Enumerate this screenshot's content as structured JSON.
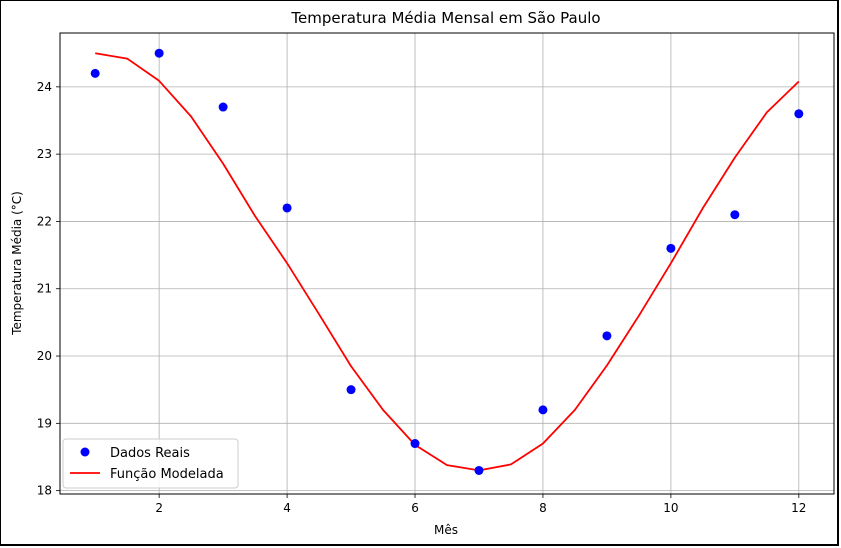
{
  "chart_data": {
    "type": "scatter",
    "title": "Temperatura Média Mensal em São Paulo",
    "xlabel": "Mês",
    "ylabel": "Temperatura Média (°C)",
    "xlim": [
      0.45,
      12.55
    ],
    "ylim": [
      17.95,
      24.8
    ],
    "xticks": [
      2,
      4,
      6,
      8,
      10,
      12
    ],
    "yticks": [
      18,
      19,
      20,
      21,
      22,
      23,
      24
    ],
    "grid": true,
    "legend_position": "lower-left",
    "series": [
      {
        "name": "Dados Reais",
        "kind": "scatter",
        "color": "#0000ff",
        "x": [
          1,
          2,
          3,
          4,
          5,
          6,
          7,
          8,
          9,
          10,
          11,
          12
        ],
        "y": [
          24.2,
          24.5,
          23.7,
          22.2,
          19.5,
          18.7,
          18.3,
          19.2,
          20.3,
          21.6,
          22.1,
          23.6
        ]
      },
      {
        "name": "Função Modelada",
        "kind": "line",
        "color": "#ff0000",
        "x": [
          1,
          1.5,
          2,
          2.5,
          3,
          3.5,
          4,
          4.5,
          5,
          5.5,
          6,
          6.5,
          7,
          7.5,
          8,
          8.5,
          9,
          9.5,
          10,
          10.5,
          11,
          11.5,
          12
        ],
        "y": [
          24.5,
          24.42,
          24.09,
          23.56,
          22.86,
          22.08,
          21.38,
          20.62,
          19.85,
          19.2,
          18.68,
          18.38,
          18.3,
          18.39,
          18.7,
          19.2,
          19.86,
          20.6,
          21.38,
          22.2,
          22.95,
          23.62,
          24.08
        ]
      }
    ]
  }
}
